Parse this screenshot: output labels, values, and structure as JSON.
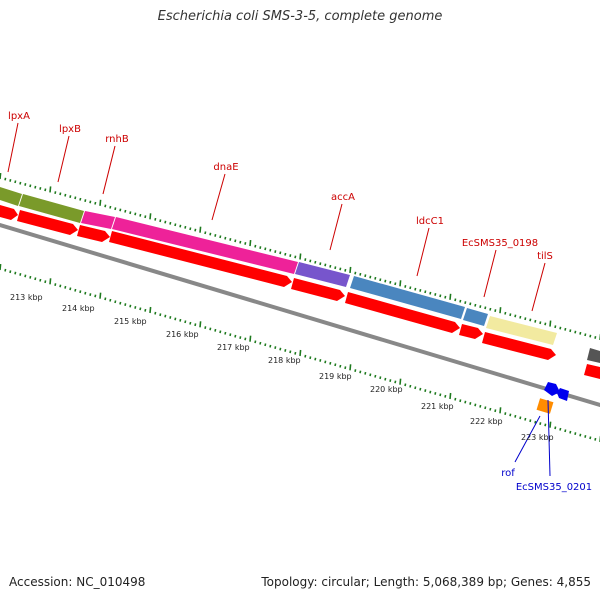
{
  "title": "Escherichia coli SMS-3-5, complete genome",
  "footer": {
    "accession": "Accession: NC_010498",
    "summary": "Topology: circular; Length: 5,068,389 bp; Genes: 4,855"
  },
  "colors": {
    "label_top": "#cc0000",
    "label_bottom": "#0000cc",
    "tick": "#1e7a1e",
    "cds": "#ff0000",
    "backbone": "#888888"
  },
  "genes_top": [
    {
      "name": "lpxA",
      "color": "#7a9a2a"
    },
    {
      "name": "lpxB",
      "color": "#7a9a2a"
    },
    {
      "name": "rnhB",
      "color": "#ee2299"
    },
    {
      "name": "dnaE",
      "color": "#ee2299"
    },
    {
      "name": "accA",
      "color": "#7755cc"
    },
    {
      "name": "ldcC1",
      "color": "#4a86bf"
    },
    {
      "name": "EcSMS35_0198",
      "color": "#4a86bf"
    },
    {
      "name": "tilS",
      "color": "#f2eaa0"
    }
  ],
  "genes_bottom": [
    {
      "name": "rof",
      "color": "#ff8c00"
    },
    {
      "name": "EcSMS35_0201",
      "color": "#0000ee"
    }
  ],
  "scale_labels": [
    "213 kbp",
    "214 kbp",
    "215 kbp",
    "216 kbp",
    "217 kbp",
    "218 kbp",
    "219 kbp",
    "220 kbp",
    "221 kbp",
    "222 kbp",
    "223 kbp"
  ]
}
